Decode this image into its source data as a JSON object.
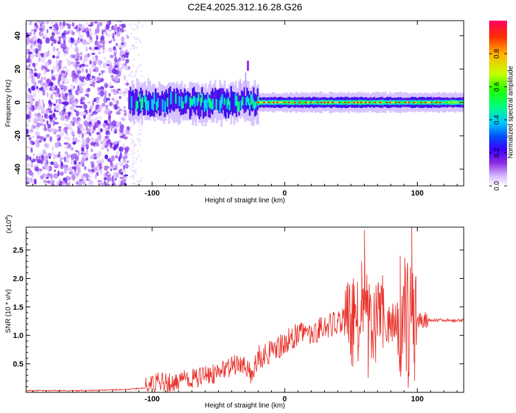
{
  "figure_title": "C2E4.2025.312.16.28.G26",
  "chart_data": [
    {
      "type": "heatmap",
      "title": "C2E4.2025.312.16.28.G26",
      "xlabel": "Height of straight line (km)",
      "ylabel": "Frequency (Hz)",
      "xlim": [
        -195,
        135
      ],
      "ylim": [
        -50,
        49
      ],
      "xticks": [
        -100,
        0,
        100
      ],
      "yticks": [
        -40,
        -20,
        0,
        20,
        40
      ],
      "colorbar": {
        "label": "Normalized spectral amplitude",
        "range": [
          0,
          1
        ],
        "ticks": [
          "0.0",
          "0.2",
          "0.4",
          "0.6",
          "0.8"
        ],
        "tick_values": [
          0.0,
          0.2,
          0.4,
          0.6,
          0.8
        ],
        "colors": [
          "#ffffff",
          "#d6b8ff",
          "#8a2be2",
          "#3a00ff",
          "#0050ff",
          "#00c8ff",
          "#00ff80",
          "#20ff00",
          "#c8ff00",
          "#ffb000",
          "#ff3000",
          "#ff0060"
        ]
      },
      "features": {
        "noise_region_km": [
          -195,
          -118
        ],
        "signal_onset_km": -118,
        "band_center_hz": 0,
        "band_halfwidth_hz": 3,
        "spurious_peak": {
          "x_km": -28,
          "y_hz": 22
        }
      }
    },
    {
      "type": "line",
      "xlabel": "Height of straight line (km)",
      "ylabel": "SNR (10 * v/v)",
      "y_multiplier_label": "(x10",
      "y_multiplier_exponent": "4",
      "xlim": [
        -195,
        135
      ],
      "ylim": [
        0,
        2.9
      ],
      "xticks": [
        -100,
        0,
        100
      ],
      "yticks": [
        0.5,
        1.0,
        1.5,
        2.0,
        2.5
      ],
      "ytick_labels": [
        "0.5",
        "1.0",
        "1.5",
        "2.0",
        "2.5"
      ],
      "line_color": "#e8312a",
      "series": [
        {
          "name": "SNR",
          "x": [
            -195,
            -150,
            -120,
            -105,
            -100,
            -95,
            -85,
            -75,
            -65,
            -55,
            -45,
            -40,
            -35,
            -30,
            -25,
            -20,
            -15,
            -10,
            -5,
            0,
            5,
            10,
            15,
            20,
            25,
            30,
            35,
            40,
            45,
            50,
            55,
            60,
            65,
            70,
            75,
            80,
            85,
            90,
            95,
            100,
            105,
            110,
            115,
            120,
            125,
            130,
            135
          ],
          "values": [
            0.03,
            0.03,
            0.05,
            0.08,
            0.12,
            0.18,
            0.15,
            0.22,
            0.25,
            0.32,
            0.4,
            0.45,
            0.52,
            0.5,
            0.3,
            0.62,
            0.66,
            0.75,
            0.8,
            0.9,
            0.95,
            1.0,
            1.05,
            1.05,
            1.1,
            1.15,
            1.2,
            1.25,
            1.3,
            1.3,
            1.28,
            1.25,
            1.22,
            1.2,
            1.2,
            1.22,
            1.25,
            1.28,
            1.3,
            1.28,
            1.27,
            1.27,
            1.27,
            1.26,
            1.26,
            1.26,
            1.26
          ]
        }
      ],
      "spikes": [
        {
          "x": 60,
          "value": 2.85
        },
        {
          "x": 63,
          "value": 0.25
        },
        {
          "x": 58,
          "value": 2.3
        },
        {
          "x": 87,
          "value": 2.4
        },
        {
          "x": 91,
          "value": 2.2
        },
        {
          "x": 93,
          "value": 0.08
        },
        {
          "x": 96,
          "value": 2.9
        },
        {
          "x": 98,
          "value": 0.2
        }
      ]
    }
  ]
}
